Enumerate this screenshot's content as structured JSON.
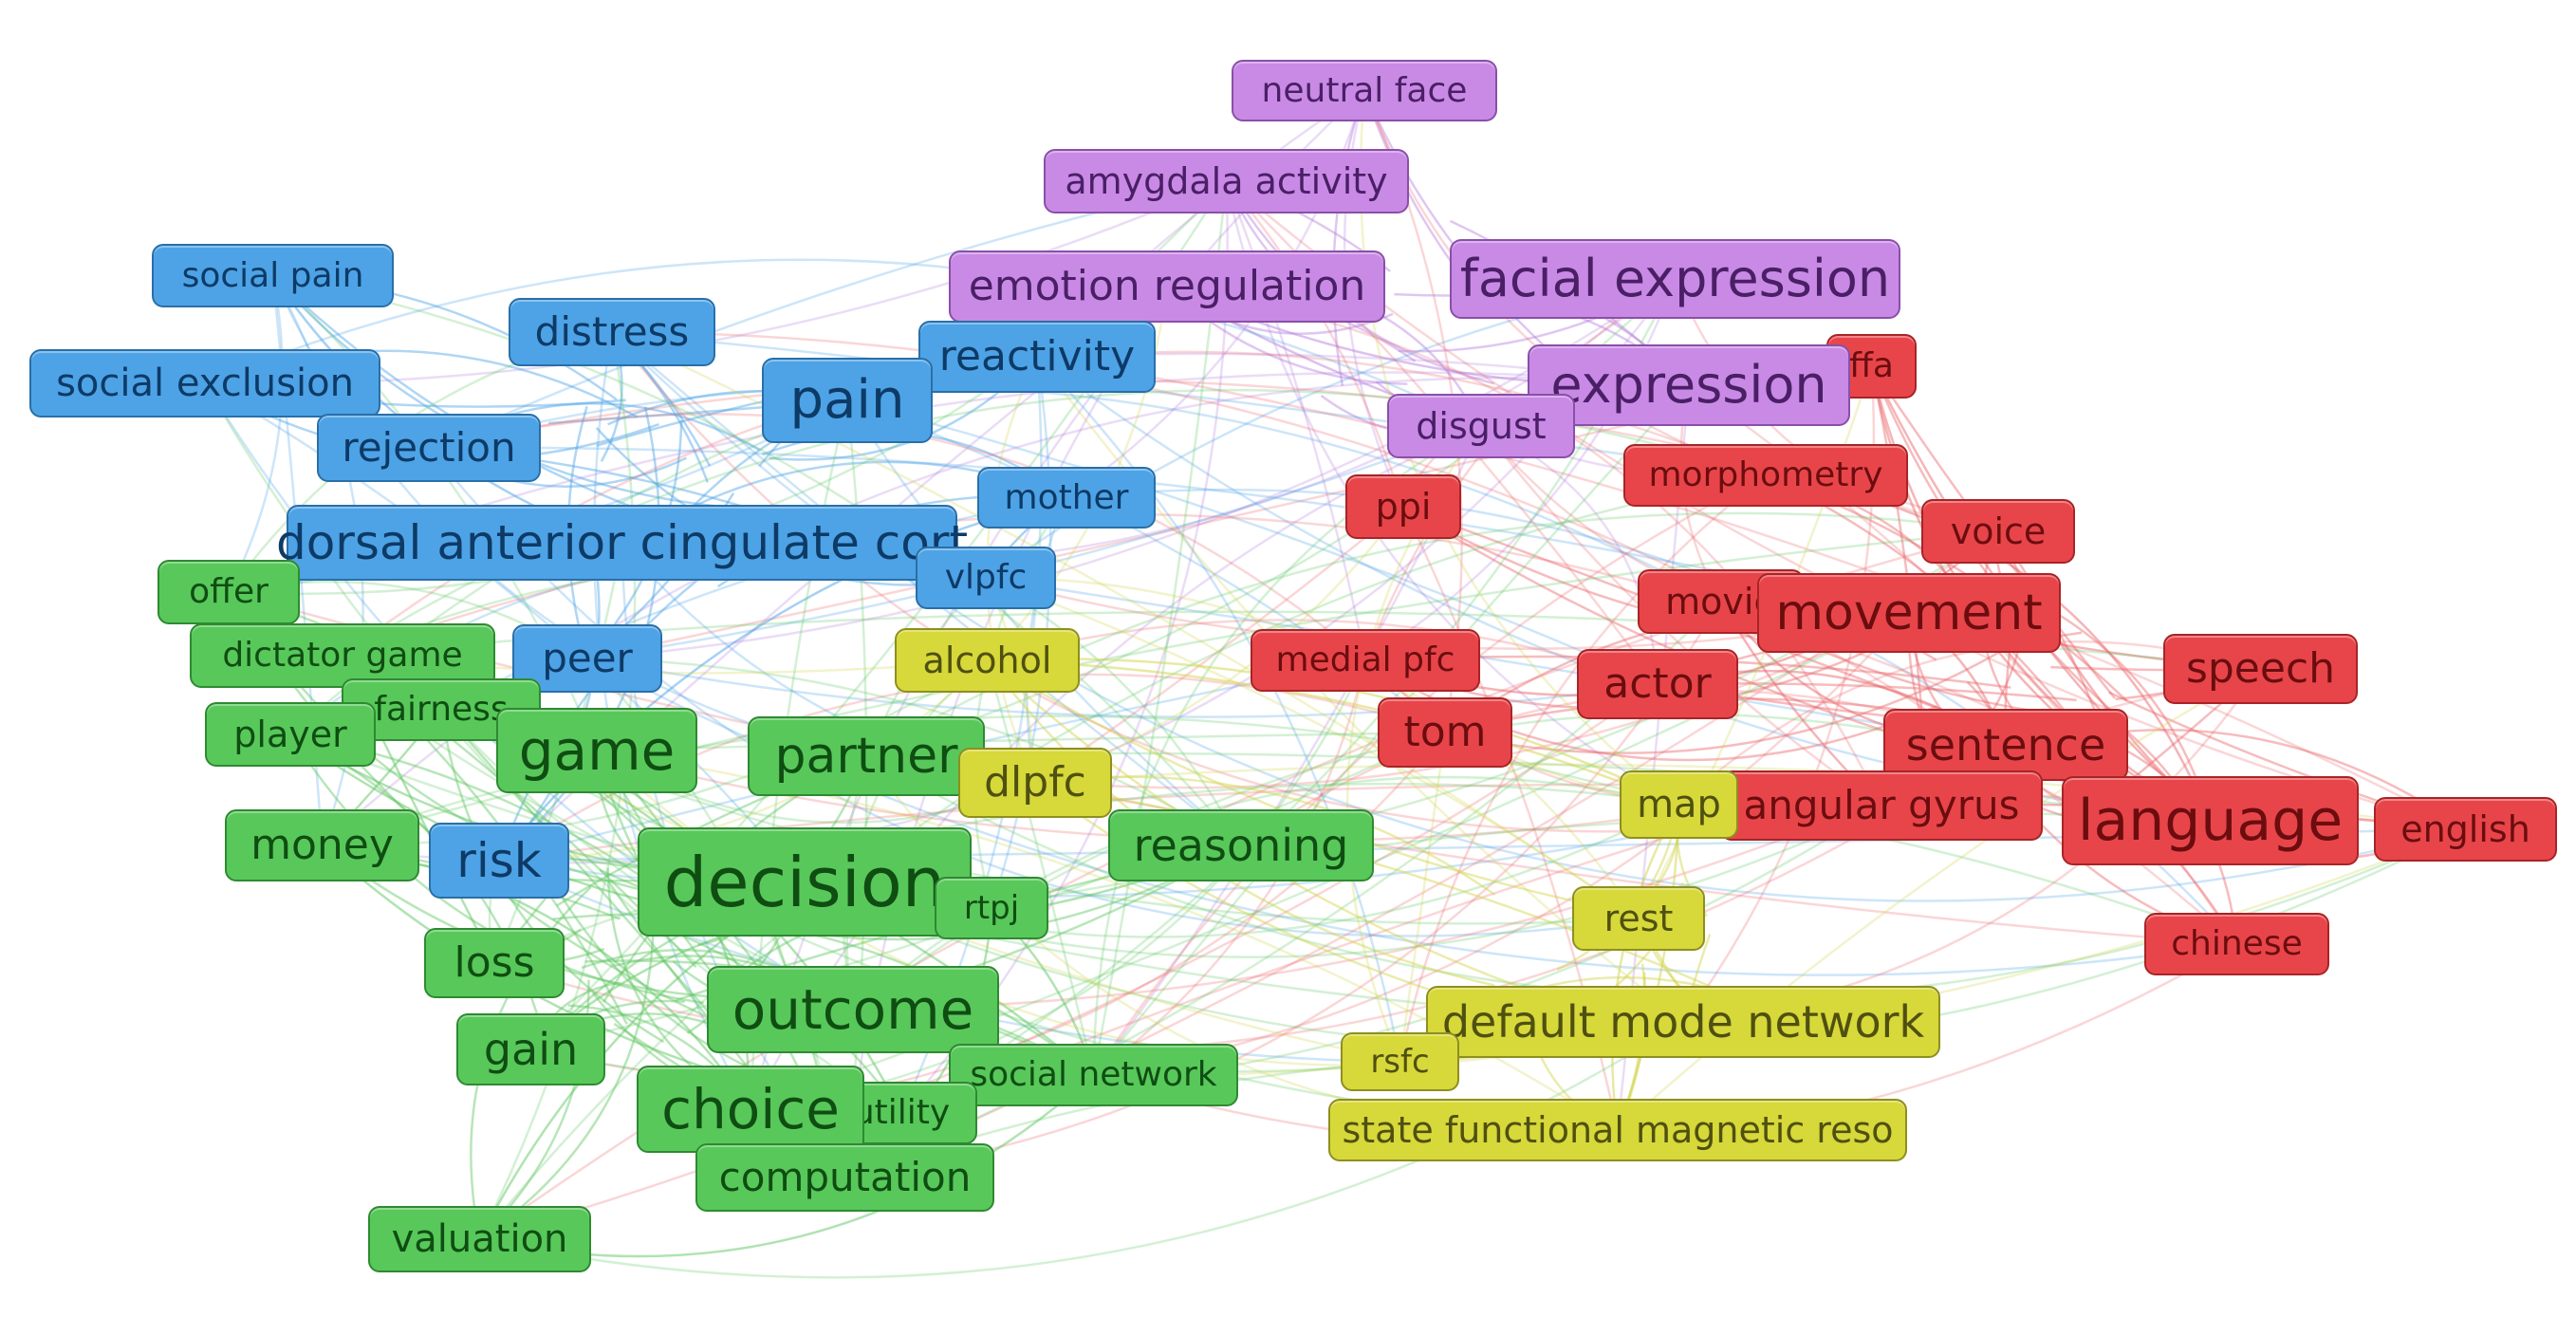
{
  "clusters": {
    "social-pain": {
      "fill": "#4da3e6",
      "border": "#2a6fa8",
      "text": "#0e3a66",
      "edge": "#4da3e6"
    },
    "emotion": {
      "fill": "#c98ae6",
      "border": "#8a4fa8",
      "text": "#4a1f66",
      "edge": "#b883e0"
    },
    "language": {
      "fill": "#e8454a",
      "border": "#a82426",
      "text": "#6b0d0f",
      "edge": "#ec6a6f"
    },
    "decision": {
      "fill": "#58c85a",
      "border": "#2e8a31",
      "text": "#0f4d12",
      "edge": "#62c864"
    },
    "network": {
      "fill": "#d7d83a",
      "border": "#8e8f1e",
      "text": "#4f5010",
      "edge": "#d2d34a"
    }
  },
  "nodes": [
    {
      "id": "neutral-face",
      "label": "neutral face",
      "cluster": "emotion"
    },
    {
      "id": "amygdala-activity",
      "label": "amygdala activity",
      "cluster": "emotion"
    },
    {
      "id": "emotion-regulation",
      "label": "emotion regulation",
      "cluster": "emotion"
    },
    {
      "id": "facial-expression",
      "label": "facial expression",
      "cluster": "emotion"
    },
    {
      "id": "ffa",
      "label": "ffa",
      "cluster": "language"
    },
    {
      "id": "expression",
      "label": "expression",
      "cluster": "emotion"
    },
    {
      "id": "disgust",
      "label": "disgust",
      "cluster": "emotion"
    },
    {
      "id": "social-pain",
      "label": "social pain",
      "cluster": "social-pain"
    },
    {
      "id": "distress",
      "label": "distress",
      "cluster": "social-pain"
    },
    {
      "id": "social-exclusion",
      "label": "social exclusion",
      "cluster": "social-pain"
    },
    {
      "id": "reactivity",
      "label": "reactivity",
      "cluster": "social-pain"
    },
    {
      "id": "pain",
      "label": "pain",
      "cluster": "social-pain"
    },
    {
      "id": "rejection",
      "label": "rejection",
      "cluster": "social-pain"
    },
    {
      "id": "mother",
      "label": "mother",
      "cluster": "social-pain"
    },
    {
      "id": "dacc",
      "label": "dorsal anterior cingulate cort",
      "cluster": "social-pain"
    },
    {
      "id": "vlpfc",
      "label": "vlpfc",
      "cluster": "social-pain"
    },
    {
      "id": "peer",
      "label": "peer",
      "cluster": "social-pain"
    },
    {
      "id": "risk",
      "label": "risk",
      "cluster": "social-pain"
    },
    {
      "id": "morphometry",
      "label": "morphometry",
      "cluster": "language"
    },
    {
      "id": "ppi",
      "label": "ppi",
      "cluster": "language"
    },
    {
      "id": "voice",
      "label": "voice",
      "cluster": "language"
    },
    {
      "id": "movie",
      "label": "movie",
      "cluster": "language"
    },
    {
      "id": "movement",
      "label": "movement",
      "cluster": "language"
    },
    {
      "id": "medial-pfc",
      "label": "medial pfc",
      "cluster": "language"
    },
    {
      "id": "actor",
      "label": "actor",
      "cluster": "language"
    },
    {
      "id": "speech",
      "label": "speech",
      "cluster": "language"
    },
    {
      "id": "tom",
      "label": "tom",
      "cluster": "language"
    },
    {
      "id": "sentence",
      "label": "sentence",
      "cluster": "language"
    },
    {
      "id": "angular-gyrus",
      "label": "angular gyrus",
      "cluster": "language"
    },
    {
      "id": "language",
      "label": "language",
      "cluster": "language"
    },
    {
      "id": "english",
      "label": "english",
      "cluster": "language"
    },
    {
      "id": "chinese",
      "label": "chinese",
      "cluster": "language"
    },
    {
      "id": "offer",
      "label": "offer",
      "cluster": "decision"
    },
    {
      "id": "dictator-game",
      "label": "dictator game",
      "cluster": "decision"
    },
    {
      "id": "fairness",
      "label": "fairness",
      "cluster": "decision"
    },
    {
      "id": "player",
      "label": "player",
      "cluster": "decision"
    },
    {
      "id": "game",
      "label": "game",
      "cluster": "decision"
    },
    {
      "id": "partner",
      "label": "partner",
      "cluster": "decision"
    },
    {
      "id": "money",
      "label": "money",
      "cluster": "decision"
    },
    {
      "id": "reasoning",
      "label": "reasoning",
      "cluster": "decision"
    },
    {
      "id": "decision",
      "label": "decision",
      "cluster": "decision"
    },
    {
      "id": "rtpj",
      "label": "rtpj",
      "cluster": "decision"
    },
    {
      "id": "loss",
      "label": "loss",
      "cluster": "decision"
    },
    {
      "id": "outcome",
      "label": "outcome",
      "cluster": "decision"
    },
    {
      "id": "gain",
      "label": "gain",
      "cluster": "decision"
    },
    {
      "id": "social-network",
      "label": "social network",
      "cluster": "decision"
    },
    {
      "id": "utility",
      "label": "utility",
      "cluster": "decision"
    },
    {
      "id": "choice",
      "label": "choice",
      "cluster": "decision"
    },
    {
      "id": "computation",
      "label": "computation",
      "cluster": "decision"
    },
    {
      "id": "valuation",
      "label": "valuation",
      "cluster": "decision"
    },
    {
      "id": "alcohol",
      "label": "alcohol",
      "cluster": "network"
    },
    {
      "id": "dlpfc",
      "label": "dlpfc",
      "cluster": "network"
    },
    {
      "id": "map",
      "label": "map",
      "cluster": "network"
    },
    {
      "id": "rest",
      "label": "rest",
      "cluster": "network"
    },
    {
      "id": "default-mode-network",
      "label": "default mode network",
      "cluster": "network"
    },
    {
      "id": "rsfc",
      "label": "rsfc",
      "cluster": "network"
    },
    {
      "id": "state-fmri",
      "label": "state functional magnetic reso",
      "cluster": "network"
    }
  ]
}
